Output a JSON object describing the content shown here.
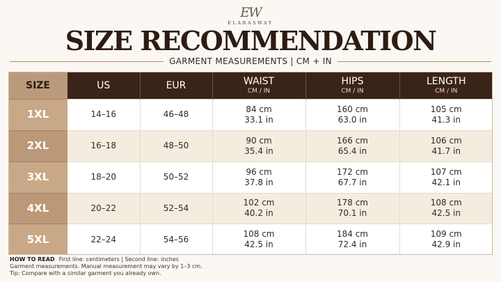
{
  "brand": {
    "monogram": "EW",
    "name": "ELARASWAY"
  },
  "title": "SIZE RECOMMENDATION",
  "subtitle": "GARMENT MEASUREMENTS | CM + IN",
  "table": {
    "headers": [
      {
        "main": "SIZE",
        "sub": ""
      },
      {
        "main": "US",
        "sub": ""
      },
      {
        "main": "EUR",
        "sub": ""
      },
      {
        "main": "WAIST",
        "sub": "CM / IN"
      },
      {
        "main": "HIPS",
        "sub": "CM / IN"
      },
      {
        "main": "LENGTH",
        "sub": "CM / IN"
      }
    ],
    "rows": [
      {
        "size": "1XL",
        "us": "14–16",
        "eur": "46–48",
        "waist_cm": "84 cm",
        "waist_in": "33.1 in",
        "hips_cm": "160 cm",
        "hips_in": "63.0 in",
        "length_cm": "105 cm",
        "length_in": "41.3 in"
      },
      {
        "size": "2XL",
        "us": "16–18",
        "eur": "48–50",
        "waist_cm": "90 cm",
        "waist_in": "35.4 in",
        "hips_cm": "166 cm",
        "hips_in": "65.4 in",
        "length_cm": "106 cm",
        "length_in": "41.7 in"
      },
      {
        "size": "3XL",
        "us": "18–20",
        "eur": "50–52",
        "waist_cm": "96 cm",
        "waist_in": "37.8 in",
        "hips_cm": "172 cm",
        "hips_in": "67.7 in",
        "length_cm": "107 cm",
        "length_in": "42.1 in"
      },
      {
        "size": "4XL",
        "us": "20–22",
        "eur": "52–54",
        "waist_cm": "102 cm",
        "waist_in": "40.2 in",
        "hips_cm": "178 cm",
        "hips_in": "70.1 in",
        "length_cm": "108 cm",
        "length_in": "42.5 in"
      },
      {
        "size": "5XL",
        "us": "22–24",
        "eur": "54–56",
        "waist_cm": "108 cm",
        "waist_in": "42.5 in",
        "hips_cm": "184 cm",
        "hips_in": "72.4 in",
        "length_cm": "109 cm",
        "length_in": "42.9 in"
      }
    ]
  },
  "notes": {
    "how_label": "HOW TO READ",
    "how_text": "First line: centimeters  |  Second line: inches",
    "line2": "Garment measurements. Manual measurement may vary by 1–3 cm.",
    "line3": "Tip: Compare with a similar garment you already own."
  },
  "colors": {
    "header_dark": "#3a2318",
    "size_column": "#c9a887",
    "row_alt": "#f5ece0",
    "accent_line": "#b08c62"
  }
}
